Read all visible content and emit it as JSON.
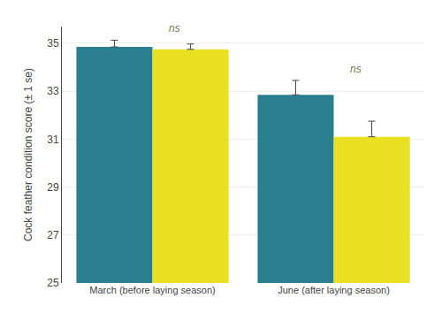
{
  "chart_data": {
    "type": "bar",
    "categories": [
      "March (before laying season)",
      "June (after laying season)"
    ],
    "series": [
      {
        "color": "#2a7f8f",
        "values": [
          34.85,
          32.85
        ],
        "errors": [
          0.28,
          0.6
        ]
      },
      {
        "color": "#e8e020",
        "values": [
          34.75,
          31.1
        ],
        "errors": [
          0.22,
          0.65
        ]
      }
    ],
    "ylabel": "Cock feather condition score (± 1 se)",
    "ylim": [
      25,
      35.7
    ],
    "yticks": [
      25,
      27,
      29,
      31,
      33,
      35
    ],
    "grid": true,
    "annotations": [
      {
        "text": "ns",
        "category": "March (before laying season)"
      },
      {
        "text": "ns",
        "category": "June (after laying season)"
      }
    ]
  }
}
